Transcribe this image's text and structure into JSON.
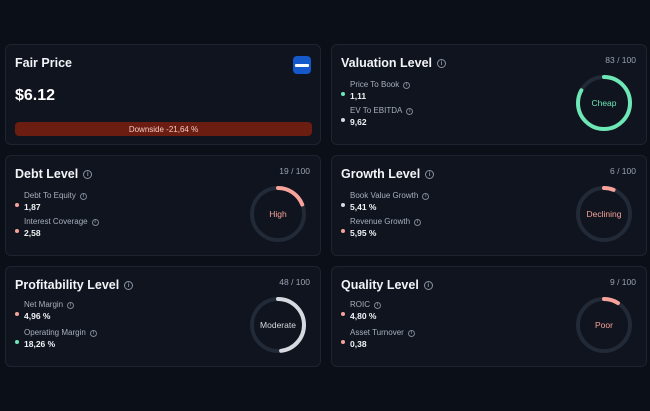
{
  "colors": {
    "green": "#6ee7b7",
    "red": "#f7a29a",
    "neutral": "#d6d9df",
    "downside_bg": "#6b1d12"
  },
  "fair_price": {
    "title": "Fair Price",
    "price": "$6.12",
    "downside": "Downside -21,64 %"
  },
  "valuation": {
    "title": "Valuation Level",
    "score": "83 / 100",
    "score_value": 83,
    "gauge_label": "Cheap",
    "metrics": [
      {
        "label": "Price To Book",
        "value": "1,11",
        "status": "green"
      },
      {
        "label": "EV To EBITDA",
        "value": "9,62",
        "status": "neutral"
      }
    ]
  },
  "debt": {
    "title": "Debt Level",
    "score": "19 / 100",
    "score_value": 19,
    "gauge_label": "High",
    "metrics": [
      {
        "label": "Debt To Equity",
        "value": "1,87",
        "status": "red"
      },
      {
        "label": "Interest Coverage",
        "value": "2,58",
        "status": "red"
      }
    ]
  },
  "growth": {
    "title": "Growth Level",
    "score": "6 / 100",
    "score_value": 6,
    "gauge_label": "Declining",
    "metrics": [
      {
        "label": "Book Value Growth",
        "value": "5,41 %",
        "status": "neutral"
      },
      {
        "label": "Revenue Growth",
        "value": "5,95 %",
        "status": "red"
      }
    ]
  },
  "profitability": {
    "title": "Profitability Level",
    "score": "48 / 100",
    "score_value": 48,
    "gauge_label": "Moderate",
    "metrics": [
      {
        "label": "Net Margin",
        "value": "4,96 %",
        "status": "red"
      },
      {
        "label": "Operating Margin",
        "value": "18,26 %",
        "status": "green"
      }
    ]
  },
  "quality": {
    "title": "Quality Level",
    "score": "9 / 100",
    "score_value": 9,
    "gauge_label": "Poor",
    "metrics": [
      {
        "label": "ROIC",
        "value": "4,80 %",
        "status": "red"
      },
      {
        "label": "Asset Turnover",
        "value": "0,38",
        "status": "red"
      }
    ]
  }
}
